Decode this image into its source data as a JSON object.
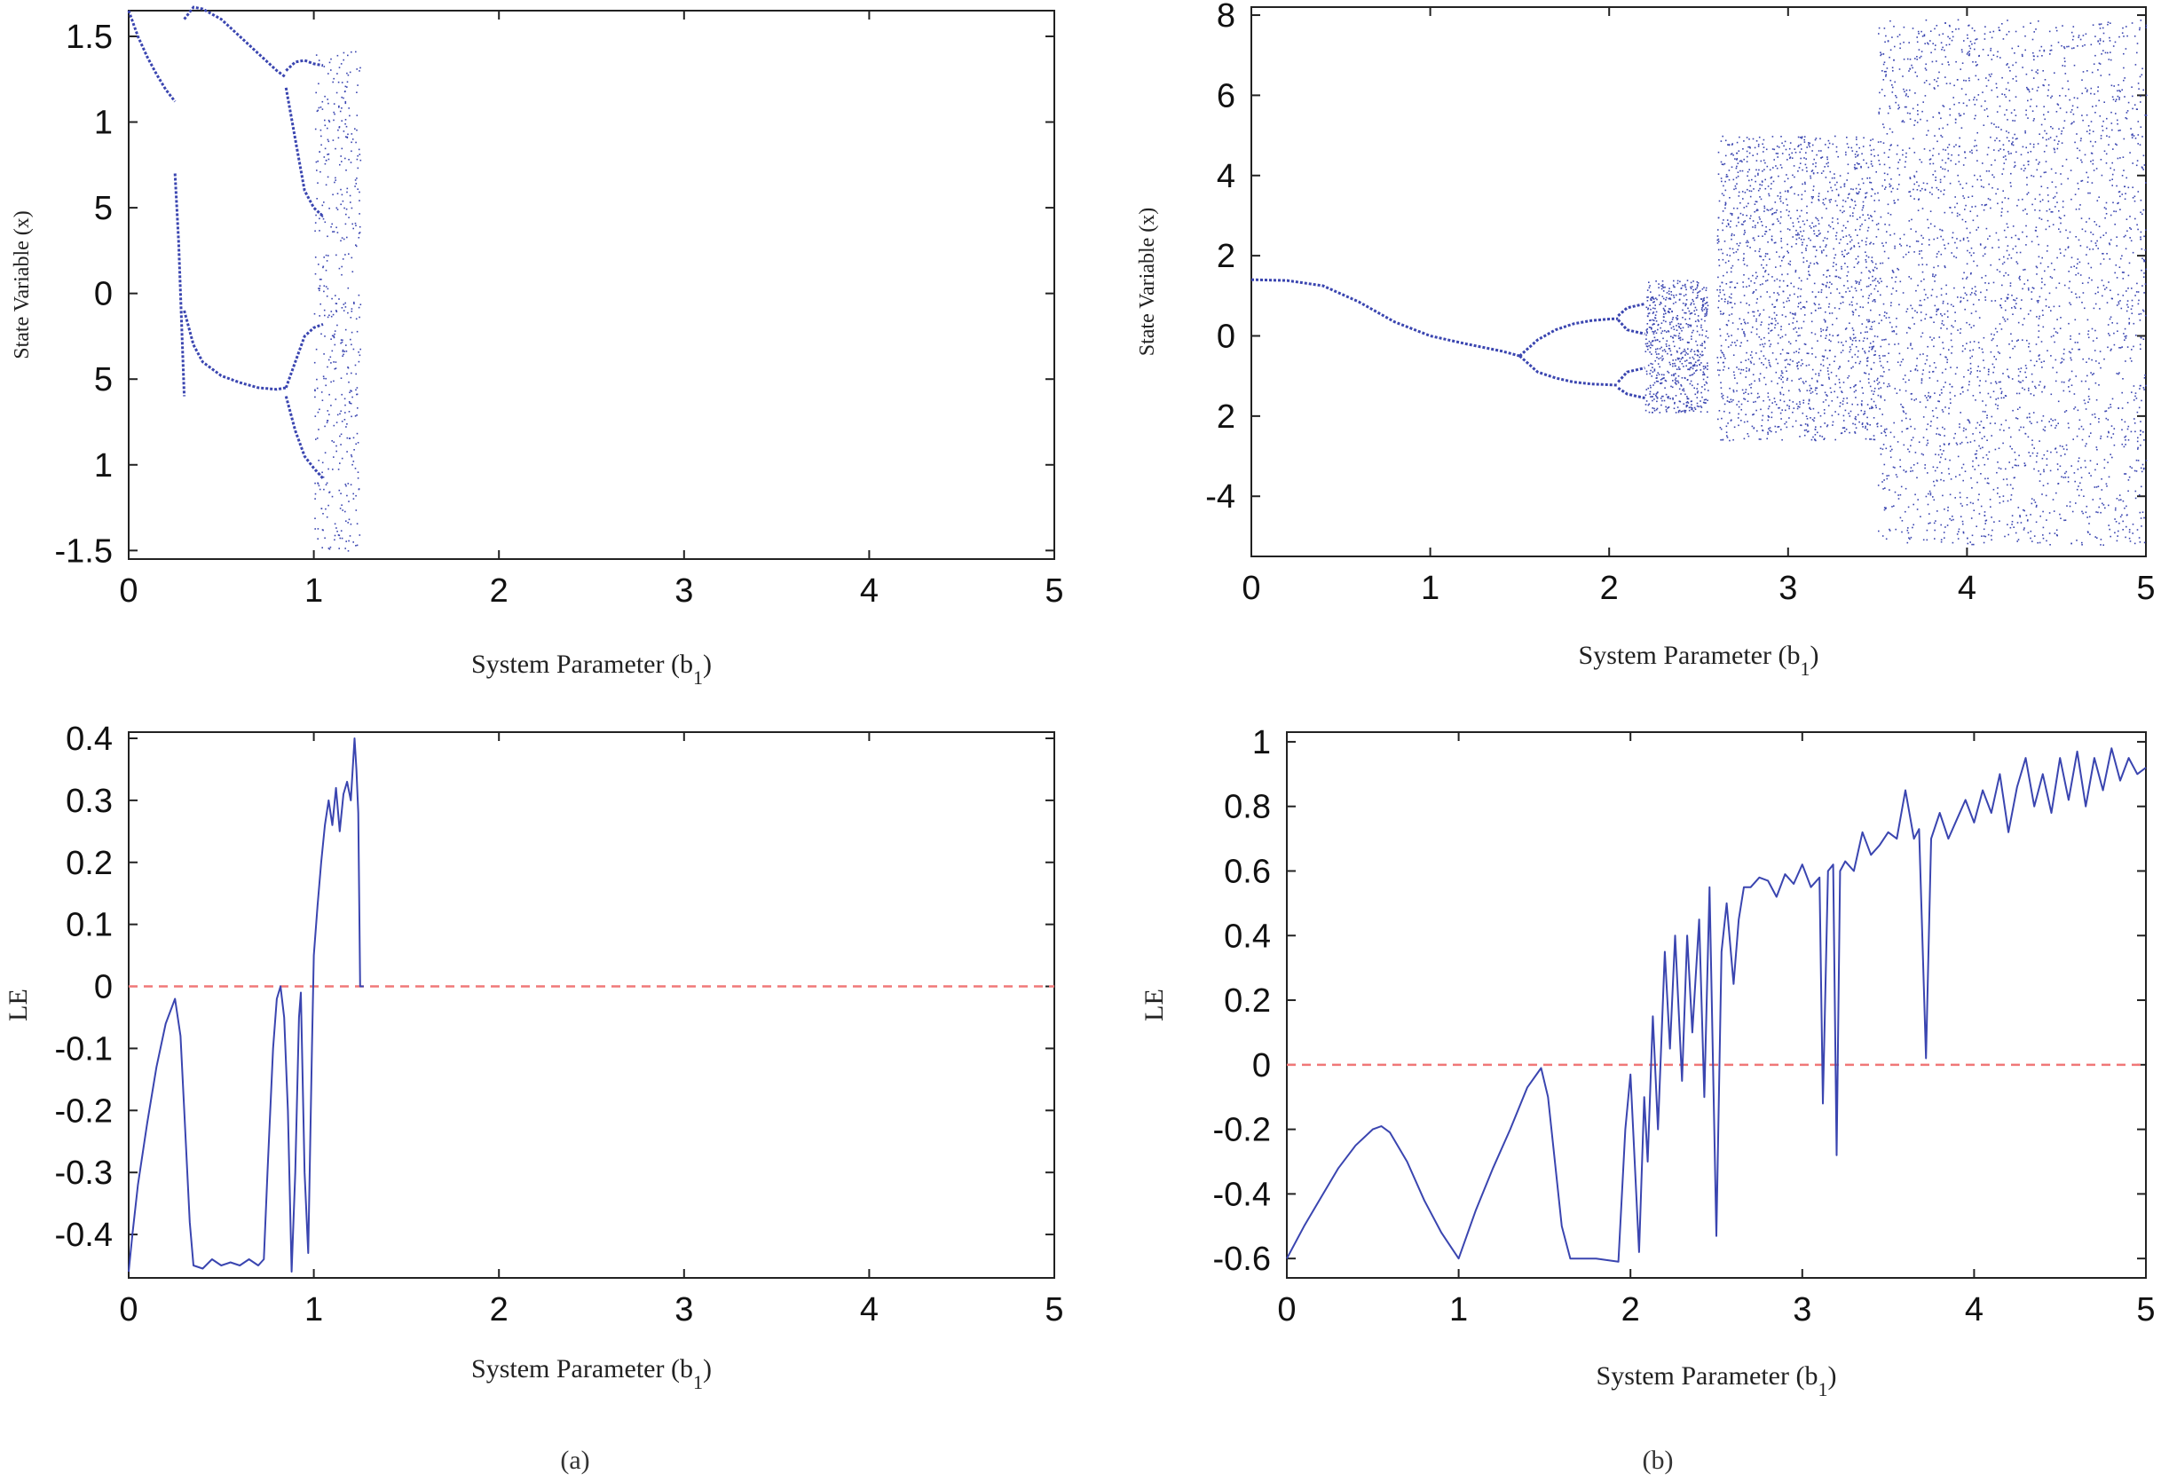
{
  "colors": {
    "series": "#3a45b0",
    "zero_line": "#f07878",
    "axis": "#222222"
  },
  "chart_data": [
    {
      "id": "a-bif",
      "type": "scatter",
      "xlabel_main": "System Parameter (b",
      "xlabel_sub": "1",
      "xlabel_end": ")",
      "ylabel": "State Variable (x)",
      "xlim": [
        0,
        5
      ],
      "ylim": [
        -1.55,
        1.65
      ],
      "xticks": [
        {
          "v": 0,
          "t": "0"
        },
        {
          "v": 1,
          "t": "1"
        },
        {
          "v": 2,
          "t": "2"
        },
        {
          "v": 3,
          "t": "3"
        },
        {
          "v": 4,
          "t": "4"
        },
        {
          "v": 5,
          "t": "5"
        }
      ],
      "yticks": [
        {
          "v": 1.5,
          "t": "1.5"
        },
        {
          "v": 1.0,
          "t": "1"
        },
        {
          "v": 0.5,
          "t": "5"
        },
        {
          "v": 0,
          "t": "0"
        },
        {
          "v": -0.5,
          "t": "5"
        },
        {
          "v": -1.0,
          "t": "1"
        },
        {
          "v": -1.5,
          "t": "-1.5"
        }
      ],
      "branches": [
        {
          "x": [
            0,
            0.05,
            0.1,
            0.15,
            0.2,
            0.25
          ],
          "y": [
            1.65,
            1.5,
            1.38,
            1.28,
            1.19,
            1.12
          ]
        },
        {
          "x": [
            0.25,
            0.27,
            0.28,
            0.29,
            0.3
          ],
          "y": [
            0.7,
            0.3,
            0.0,
            -0.3,
            -0.6
          ]
        },
        {
          "x": [
            0.3,
            0.35,
            0.4,
            0.5,
            0.6,
            0.7,
            0.8,
            0.85
          ],
          "y": [
            1.6,
            1.67,
            1.66,
            1.6,
            1.5,
            1.4,
            1.3,
            1.26
          ]
        },
        {
          "x": [
            0.3,
            0.35,
            0.4,
            0.5,
            0.6,
            0.7,
            0.8,
            0.85
          ],
          "y": [
            -0.1,
            -0.3,
            -0.4,
            -0.48,
            -0.52,
            -0.55,
            -0.56,
            -0.55
          ]
        },
        {
          "x": [
            0.85,
            0.9,
            0.95,
            1.0,
            1.05
          ],
          "y": [
            1.3,
            1.35,
            1.36,
            1.34,
            1.33
          ]
        },
        {
          "x": [
            0.85,
            0.9,
            0.95,
            1.0,
            1.05
          ],
          "y": [
            1.2,
            0.9,
            0.6,
            0.5,
            0.45
          ]
        },
        {
          "x": [
            0.85,
            0.9,
            0.95,
            1.0,
            1.05
          ],
          "y": [
            -0.55,
            -0.4,
            -0.25,
            -0.2,
            -0.18
          ]
        },
        {
          "x": [
            0.85,
            0.9,
            0.95,
            1.0,
            1.05
          ],
          "y": [
            -0.6,
            -0.8,
            -0.95,
            -1.02,
            -1.08
          ]
        }
      ],
      "chaos_bands": [
        {
          "x0": 1.0,
          "x1": 1.25,
          "y0": -1.5,
          "y1": 1.42
        }
      ]
    },
    {
      "id": "b-bif",
      "type": "scatter",
      "xlabel_main": "System Parameter (b",
      "xlabel_sub": "1",
      "xlabel_end": ")",
      "ylabel": "State Variable (x)",
      "xlim": [
        0,
        5
      ],
      "ylim": [
        -5.5,
        8.2
      ],
      "xticks": [
        {
          "v": 0,
          "t": "0"
        },
        {
          "v": 1,
          "t": "1"
        },
        {
          "v": 2,
          "t": "2"
        },
        {
          "v": 3,
          "t": "3"
        },
        {
          "v": 4,
          "t": "4"
        },
        {
          "v": 5,
          "t": "5"
        }
      ],
      "yticks": [
        {
          "v": 8,
          "t": "8"
        },
        {
          "v": 6,
          "t": "6"
        },
        {
          "v": 4,
          "t": "4"
        },
        {
          "v": 2,
          "t": "2"
        },
        {
          "v": 0,
          "t": "0"
        },
        {
          "v": -2,
          "t": "2"
        },
        {
          "v": -4,
          "t": "-4"
        }
      ],
      "branches": [
        {
          "x": [
            0,
            0.2,
            0.4,
            0.6,
            0.8,
            1.0,
            1.2,
            1.4,
            1.5
          ],
          "y": [
            1.4,
            1.38,
            1.25,
            0.85,
            0.35,
            0.0,
            -0.2,
            -0.38,
            -0.5
          ]
        },
        {
          "x": [
            1.5,
            1.6,
            1.7,
            1.8,
            1.9,
            2.0,
            2.05
          ],
          "y": [
            -0.5,
            -0.1,
            0.15,
            0.3,
            0.38,
            0.42,
            0.43
          ]
        },
        {
          "x": [
            1.5,
            1.6,
            1.7,
            1.8,
            1.9,
            2.0,
            2.05
          ],
          "y": [
            -0.5,
            -0.9,
            -1.05,
            -1.15,
            -1.2,
            -1.22,
            -1.23
          ]
        },
        {
          "x": [
            2.05,
            2.1,
            2.15,
            2.2
          ],
          "y": [
            0.5,
            0.7,
            0.75,
            0.8
          ]
        },
        {
          "x": [
            2.05,
            2.1,
            2.15,
            2.2
          ],
          "y": [
            0.4,
            0.15,
            0.1,
            0.05
          ]
        },
        {
          "x": [
            2.05,
            2.1,
            2.15,
            2.2
          ],
          "y": [
            -1.15,
            -0.9,
            -0.85,
            -0.8
          ]
        },
        {
          "x": [
            2.05,
            2.1,
            2.15,
            2.2
          ],
          "y": [
            -1.3,
            -1.45,
            -1.5,
            -1.55
          ]
        }
      ],
      "chaos_bands": [
        {
          "x0": 2.2,
          "x1": 2.55,
          "y0": -1.9,
          "y1": 1.4
        },
        {
          "x0": 2.6,
          "x1": 3.5,
          "y0": -2.6,
          "y1": 5.0
        },
        {
          "x0": 3.5,
          "x1": 5.0,
          "y0": -5.2,
          "y1": 7.9
        }
      ]
    },
    {
      "id": "a-le",
      "type": "line",
      "xlabel_main": "System Parameter (b",
      "xlabel_sub": "1",
      "xlabel_end": ")",
      "ylabel": "LE",
      "xlim": [
        0,
        5
      ],
      "ylim": [
        -0.47,
        0.41
      ],
      "xticks": [
        {
          "v": 0,
          "t": "0"
        },
        {
          "v": 1,
          "t": "1"
        },
        {
          "v": 2,
          "t": "2"
        },
        {
          "v": 3,
          "t": "3"
        },
        {
          "v": 4,
          "t": "4"
        },
        {
          "v": 5,
          "t": "5"
        }
      ],
      "yticks": [
        {
          "v": 0.4,
          "t": "0.4"
        },
        {
          "v": 0.3,
          "t": "0.3"
        },
        {
          "v": 0.2,
          "t": "0.2"
        },
        {
          "v": 0.1,
          "t": "0.1"
        },
        {
          "v": 0,
          "t": "0"
        },
        {
          "v": -0.1,
          "t": "-0.1"
        },
        {
          "v": -0.2,
          "t": "-0.2"
        },
        {
          "v": -0.3,
          "t": "-0.3"
        },
        {
          "v": -0.4,
          "t": "-0.4"
        }
      ],
      "zero_line": true,
      "series": [
        {
          "name": "LE",
          "x": [
            0,
            0.02,
            0.05,
            0.1,
            0.15,
            0.2,
            0.25,
            0.28,
            0.3,
            0.33,
            0.35,
            0.4,
            0.45,
            0.5,
            0.55,
            0.6,
            0.65,
            0.7,
            0.73,
            0.75,
            0.78,
            0.8,
            0.82,
            0.84,
            0.86,
            0.88,
            0.9,
            0.92,
            0.93,
            0.95,
            0.97,
            0.99,
            1.0,
            1.02,
            1.04,
            1.06,
            1.08,
            1.1,
            1.12,
            1.14,
            1.16,
            1.18,
            1.2,
            1.22,
            1.23,
            1.24,
            1.25,
            1.27
          ],
          "y": [
            -0.46,
            -0.4,
            -0.32,
            -0.22,
            -0.13,
            -0.06,
            -0.02,
            -0.08,
            -0.2,
            -0.38,
            -0.45,
            -0.455,
            -0.44,
            -0.45,
            -0.445,
            -0.45,
            -0.44,
            -0.45,
            -0.44,
            -0.3,
            -0.1,
            -0.02,
            0.0,
            -0.05,
            -0.2,
            -0.46,
            -0.3,
            -0.05,
            -0.01,
            -0.3,
            -0.43,
            -0.1,
            0.05,
            0.13,
            0.2,
            0.26,
            0.3,
            0.26,
            0.32,
            0.25,
            0.31,
            0.33,
            0.3,
            0.4,
            0.35,
            0.28,
            0.0,
            0.0
          ]
        }
      ]
    },
    {
      "id": "b-le",
      "type": "line",
      "xlabel_main": "System Parameter (b",
      "xlabel_sub": "1",
      "xlabel_end": ")",
      "ylabel": "LE",
      "xlim": [
        0,
        5
      ],
      "ylim": [
        -0.66,
        1.03
      ],
      "xticks": [
        {
          "v": 0,
          "t": "0"
        },
        {
          "v": 1,
          "t": "1"
        },
        {
          "v": 2,
          "t": "2"
        },
        {
          "v": 3,
          "t": "3"
        },
        {
          "v": 4,
          "t": "4"
        },
        {
          "v": 5,
          "t": "5"
        }
      ],
      "yticks": [
        {
          "v": 1,
          "t": "1"
        },
        {
          "v": 0.8,
          "t": "0.8"
        },
        {
          "v": 0.6,
          "t": "0.6"
        },
        {
          "v": 0.4,
          "t": "0.4"
        },
        {
          "v": 0.2,
          "t": "0.2"
        },
        {
          "v": 0,
          "t": "0"
        },
        {
          "v": -0.2,
          "t": "-0.2"
        },
        {
          "v": -0.4,
          "t": "-0.4"
        },
        {
          "v": -0.6,
          "t": "-0.6"
        }
      ],
      "zero_line": true,
      "series": [
        {
          "name": "LE",
          "x": [
            0,
            0.1,
            0.2,
            0.3,
            0.4,
            0.5,
            0.55,
            0.6,
            0.7,
            0.8,
            0.9,
            1.0,
            1.1,
            1.2,
            1.3,
            1.4,
            1.48,
            1.52,
            1.6,
            1.65,
            1.8,
            1.93,
            1.97,
            2.0,
            2.05,
            2.08,
            2.1,
            2.13,
            2.16,
            2.2,
            2.23,
            2.26,
            2.3,
            2.33,
            2.36,
            2.4,
            2.43,
            2.46,
            2.5,
            2.53,
            2.56,
            2.6,
            2.63,
            2.66,
            2.7,
            2.75,
            2.8,
            2.85,
            2.9,
            2.95,
            3.0,
            3.05,
            3.1,
            3.12,
            3.15,
            3.18,
            3.2,
            3.22,
            3.25,
            3.3,
            3.35,
            3.4,
            3.45,
            3.5,
            3.55,
            3.6,
            3.65,
            3.68,
            3.72,
            3.75,
            3.8,
            3.85,
            3.9,
            3.95,
            4.0,
            4.05,
            4.1,
            4.15,
            4.2,
            4.25,
            4.3,
            4.35,
            4.4,
            4.45,
            4.5,
            4.55,
            4.6,
            4.65,
            4.7,
            4.75,
            4.8,
            4.85,
            4.9,
            4.95,
            5.0
          ],
          "y": [
            -0.6,
            -0.5,
            -0.41,
            -0.32,
            -0.25,
            -0.2,
            -0.19,
            -0.21,
            -0.3,
            -0.42,
            -0.52,
            -0.6,
            -0.45,
            -0.32,
            -0.2,
            -0.07,
            -0.01,
            -0.1,
            -0.5,
            -0.6,
            -0.6,
            -0.61,
            -0.2,
            -0.03,
            -0.58,
            -0.1,
            -0.3,
            0.15,
            -0.2,
            0.35,
            0.05,
            0.4,
            -0.05,
            0.4,
            0.1,
            0.45,
            -0.1,
            0.55,
            -0.53,
            0.35,
            0.5,
            0.25,
            0.45,
            0.55,
            0.55,
            0.58,
            0.57,
            0.52,
            0.59,
            0.56,
            0.62,
            0.55,
            0.58,
            -0.12,
            0.6,
            0.62,
            -0.28,
            0.6,
            0.63,
            0.6,
            0.72,
            0.65,
            0.68,
            0.72,
            0.7,
            0.85,
            0.7,
            0.73,
            0.02,
            0.7,
            0.78,
            0.7,
            0.76,
            0.82,
            0.75,
            0.85,
            0.78,
            0.9,
            0.72,
            0.86,
            0.95,
            0.8,
            0.9,
            0.78,
            0.95,
            0.82,
            0.97,
            0.8,
            0.95,
            0.85,
            0.98,
            0.88,
            0.95,
            0.9,
            0.92
          ]
        }
      ]
    }
  ],
  "captions": {
    "a": "(a)",
    "b": "(b)"
  }
}
